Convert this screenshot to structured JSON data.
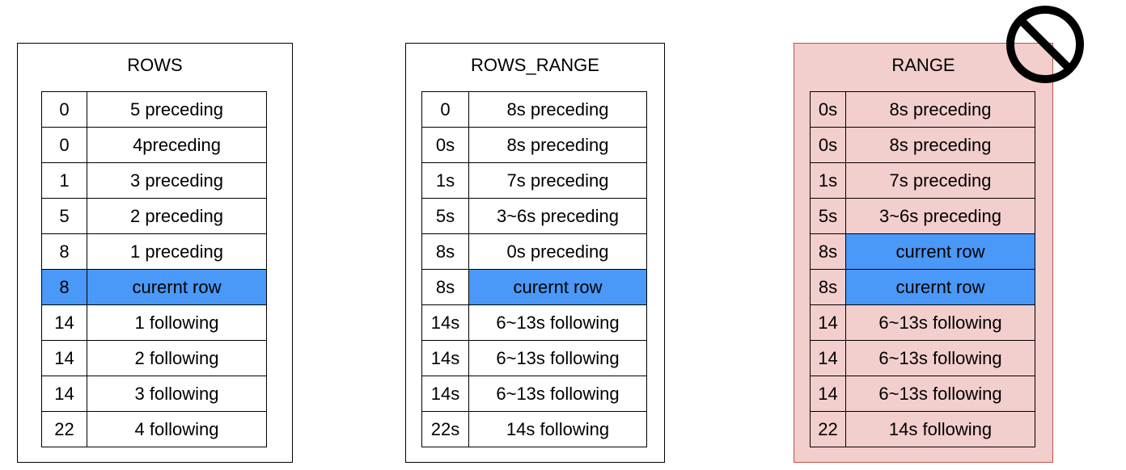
{
  "colors": {
    "highlight": "#4a98f7",
    "range_panel_fill": "#f2cecc",
    "range_panel_border": "#b85450",
    "table_border": "#000000",
    "prohibited_sign": "#000000"
  },
  "icons": {
    "prohibited": "no-entry-circle-slash"
  },
  "panels": [
    {
      "title": "ROWS",
      "rows": [
        {
          "key": "0",
          "frame": "5 preceding",
          "current": false
        },
        {
          "key": "0",
          "frame": "4preceding",
          "current": false
        },
        {
          "key": "1",
          "frame": "3 preceding",
          "current": false
        },
        {
          "key": "5",
          "frame": "2 preceding",
          "current": false
        },
        {
          "key": "8",
          "frame": "1 preceding",
          "current": false
        },
        {
          "key": "8",
          "frame": "curernt row",
          "current": true,
          "highlight_key": true
        },
        {
          "key": "14",
          "frame": "1 following",
          "current": false
        },
        {
          "key": "14",
          "frame": "2 following",
          "current": false
        },
        {
          "key": "14",
          "frame": "3 following",
          "current": false
        },
        {
          "key": "22",
          "frame": "4 following",
          "current": false
        }
      ]
    },
    {
      "title": "ROWS_RANGE",
      "rows": [
        {
          "key": "0",
          "frame": "8s preceding",
          "current": false
        },
        {
          "key": "0s",
          "frame": "8s preceding",
          "current": false
        },
        {
          "key": "1s",
          "frame": "7s preceding",
          "current": false
        },
        {
          "key": "5s",
          "frame": "3~6s preceding",
          "current": false
        },
        {
          "key": "8s",
          "frame": "0s preceding",
          "current": false
        },
        {
          "key": "8s",
          "frame": "curernt row",
          "current": true,
          "highlight_key": false
        },
        {
          "key": "14s",
          "frame": "6~13s following",
          "current": false
        },
        {
          "key": "14s",
          "frame": "6~13s following",
          "current": false
        },
        {
          "key": "14s",
          "frame": "6~13s following",
          "current": false
        },
        {
          "key": "22s",
          "frame": "14s following",
          "current": false
        }
      ]
    },
    {
      "title": "RANGE",
      "rows": [
        {
          "key": "0s",
          "frame": "8s preceding",
          "current": false
        },
        {
          "key": "0s",
          "frame": "8s preceding",
          "current": false
        },
        {
          "key": "1s",
          "frame": "7s preceding",
          "current": false
        },
        {
          "key": "5s",
          "frame": "3~6s preceding",
          "current": false
        },
        {
          "key": "8s",
          "frame": "current row",
          "current": true,
          "highlight_key": false
        },
        {
          "key": "8s",
          "frame": "curernt row",
          "current": true,
          "highlight_key": false
        },
        {
          "key": "14",
          "frame": "6~13s following",
          "current": false
        },
        {
          "key": "14",
          "frame": "6~13s following",
          "current": false
        },
        {
          "key": "14",
          "frame": "6~13s following",
          "current": false
        },
        {
          "key": "22",
          "frame": "14s following",
          "current": false
        }
      ]
    }
  ]
}
